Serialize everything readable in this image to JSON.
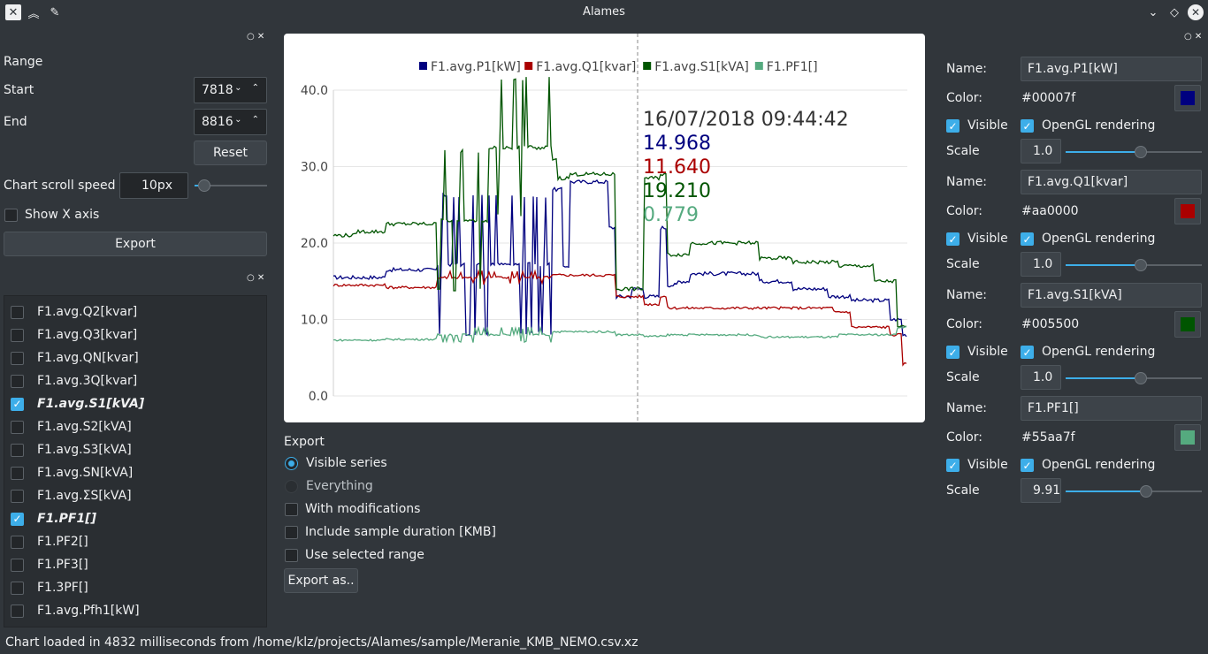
{
  "window": {
    "title": "Alames"
  },
  "range_panel": {
    "title": "Range",
    "start_label": "Start",
    "start_value": "7818",
    "end_label": "End",
    "end_value": "8816",
    "reset_label": "Reset",
    "scroll_label": "Chart scroll speed",
    "scroll_value": "10px",
    "scroll_level": 0.05,
    "show_x_axis_label": "Show X axis",
    "export_label": "Export"
  },
  "series_list": [
    {
      "label": "F1.avg.Q2[kvar]",
      "checked": false
    },
    {
      "label": "F1.avg.Q3[kvar]",
      "checked": false
    },
    {
      "label": "F1.avg.QN[kvar]",
      "checked": false
    },
    {
      "label": "F1.avg.3Q[kvar]",
      "checked": false
    },
    {
      "label": "F1.avg.S1[kVA]",
      "checked": true
    },
    {
      "label": "F1.avg.S2[kVA]",
      "checked": false
    },
    {
      "label": "F1.avg.S3[kVA]",
      "checked": false
    },
    {
      "label": "F1.avg.SN[kVA]",
      "checked": false
    },
    {
      "label": "F1.avg.ΣS[kVA]",
      "checked": false
    },
    {
      "label": "F1.PF1[]",
      "checked": true
    },
    {
      "label": "F1.PF2[]",
      "checked": false
    },
    {
      "label": "F1.PF3[]",
      "checked": false
    },
    {
      "label": "F1.3PF[]",
      "checked": false
    },
    {
      "label": "F1.avg.Pfh1[kW]",
      "checked": false
    }
  ],
  "chart_data": {
    "type": "line",
    "legend": [
      "F1.avg.P1[kW]",
      "F1.avg.Q1[kvar]",
      "F1.avg.S1[kVA]",
      "F1.PF1[]"
    ],
    "colors": [
      "#00007f",
      "#aa0000",
      "#005500",
      "#55aa7f"
    ],
    "ylim": [
      0,
      40
    ],
    "yticks": [
      "40.0",
      "30.0",
      "20.0",
      "10.0",
      "0.0"
    ],
    "tooltip": {
      "time": "16/07/2018 09:44:42",
      "values": [
        "14.968",
        "11.640",
        "19.210",
        "0.779"
      ]
    }
  },
  "export_panel": {
    "title": "Export",
    "visible_series": "Visible series",
    "everything": "Everything",
    "with_modifications": "With modifications",
    "include_duration": "Include sample duration [KMB]",
    "use_range": "Use selected range",
    "export_as": "Export as.."
  },
  "series_settings": [
    {
      "name_label": "Name:",
      "name": "F1.avg.P1[kW]",
      "color_label": "Color:",
      "color": "#00007f",
      "visible": "Visible",
      "opengl": "OpenGL rendering",
      "scale_label": "Scale",
      "scale": "1.0",
      "scale_level": 0.55
    },
    {
      "name_label": "Name:",
      "name": "F1.avg.Q1[kvar]",
      "color_label": "Color:",
      "color": "#aa0000",
      "visible": "Visible",
      "opengl": "OpenGL rendering",
      "scale_label": "Scale",
      "scale": "1.0",
      "scale_level": 0.55
    },
    {
      "name_label": "Name:",
      "name": "F1.avg.S1[kVA]",
      "color_label": "Color:",
      "color": "#005500",
      "visible": "Visible",
      "opengl": "OpenGL rendering",
      "scale_label": "Scale",
      "scale": "1.0",
      "scale_level": 0.55
    },
    {
      "name_label": "Name:",
      "name": "F1.PF1[]",
      "color_label": "Color:",
      "color": "#55aa7f",
      "visible": "Visible",
      "opengl": "OpenGL rendering",
      "scale_label": "Scale",
      "scale": "9.91",
      "scale_level": 0.59
    }
  ],
  "status": "Chart loaded in 4832 milliseconds from /home/klz/projects/Alames/sample/Meranie_KMB_NEMO.csv.xz"
}
